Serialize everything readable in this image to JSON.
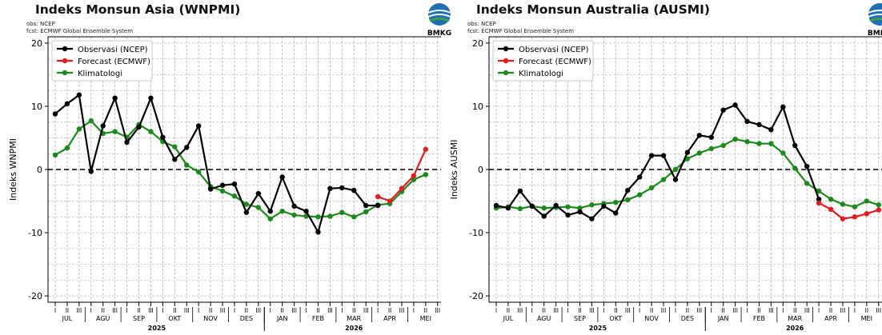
{
  "chart_data": [
    {
      "type": "line",
      "title": "Indeks Monsun Asia (WNPMI)",
      "source_obs": "obs: NCEP",
      "source_fcst": "fcst: ECMWF Global Ensemble System",
      "ylabel": "Indeks WNPMI",
      "ylim": [
        -21,
        21
      ],
      "yticks": [
        20,
        10,
        0,
        -10,
        -20
      ],
      "x_dasarian_labels": [
        "I",
        "II",
        "III",
        "I",
        "II",
        "III",
        "I",
        "II",
        "III",
        "I",
        "II",
        "III",
        "I",
        "II",
        "III",
        "I",
        "II",
        "III",
        "I",
        "II",
        "III",
        "I",
        "II",
        "III",
        "I",
        "II",
        "III",
        "I",
        "II",
        "III",
        "I",
        "II",
        "III"
      ],
      "months": [
        "JUL",
        "AGU",
        "SEP",
        "OKT",
        "NOV",
        "DES",
        "JAN",
        "FEB",
        "MAR",
        "APR",
        "MEI"
      ],
      "years": [
        "2025",
        "2026"
      ],
      "zero_line": true,
      "grid": true,
      "legend_position": "top-left",
      "series": [
        {
          "name": "Observasi (NCEP)",
          "color": "#000000",
          "x_start": 0,
          "values": [
            8.8,
            10.4,
            11.8,
            -0.3,
            6.9,
            11.3,
            4.3,
            6.7,
            11.3,
            5.1,
            1.6,
            3.5,
            6.9,
            -3.1,
            -2.5,
            -2.3,
            -6.8,
            -3.8,
            -6.6,
            -1.2,
            -5.8,
            -6.6,
            -9.9,
            -3.0,
            -2.9,
            -3.3,
            -5.7,
            -5.7
          ]
        },
        {
          "name": "Forecast (ECMWF)",
          "color": "#e41a1c",
          "x_start": 27,
          "values": [
            -4.3,
            -5.0,
            -3.0,
            -1.0,
            3.2
          ]
        },
        {
          "name": "Klimatologi",
          "color": "#1a8a1a",
          "x_start": 0,
          "values": [
            2.3,
            3.4,
            6.4,
            7.7,
            5.7,
            6.0,
            5.1,
            7.1,
            6.0,
            4.4,
            3.6,
            0.7,
            -0.4,
            -2.7,
            -3.4,
            -4.2,
            -5.5,
            -6.0,
            -7.8,
            -6.6,
            -7.2,
            -7.4,
            -7.5,
            -7.4,
            -6.8,
            -7.5,
            -6.7,
            -5.6,
            -5.4,
            -3.5,
            -1.6,
            -0.8
          ]
        }
      ]
    },
    {
      "type": "line",
      "title": "Indeks Monsun Australia (AUSMI)",
      "source_obs": "obs: NCEP",
      "source_fcst": "fcst: ECMWF Global Ensemble System",
      "ylabel": "Indeks AUSMI",
      "ylim": [
        -21,
        21
      ],
      "yticks": [
        20,
        10,
        0,
        -10,
        -20
      ],
      "x_dasarian_labels": [
        "I",
        "II",
        "III",
        "I",
        "II",
        "III",
        "I",
        "II",
        "III",
        "I",
        "II",
        "III",
        "I",
        "II",
        "III",
        "I",
        "II",
        "III",
        "I",
        "II",
        "III",
        "I",
        "II",
        "III",
        "I",
        "II",
        "III",
        "I",
        "II",
        "III",
        "I",
        "II",
        "III"
      ],
      "months": [
        "JUL",
        "AGU",
        "SEP",
        "OKT",
        "NOV",
        "DES",
        "JAN",
        "FEB",
        "MAR",
        "APR",
        "MEI"
      ],
      "years": [
        "2025",
        "2026"
      ],
      "zero_line": true,
      "grid": true,
      "legend_position": "top-left",
      "series": [
        {
          "name": "Observasi (NCEP)",
          "color": "#000000",
          "x_start": 0,
          "values": [
            -5.7,
            -6.1,
            -3.4,
            -5.8,
            -7.4,
            -5.7,
            -7.2,
            -6.7,
            -7.8,
            -5.8,
            -6.9,
            -3.3,
            -1.2,
            2.2,
            2.2,
            -1.6,
            2.7,
            5.4,
            5.1,
            9.4,
            10.2,
            7.6,
            7.1,
            6.3,
            9.9,
            3.8,
            0.5,
            -4.7
          ]
        },
        {
          "name": "Forecast (ECMWF)",
          "color": "#e41a1c",
          "x_start": 27,
          "values": [
            -5.3,
            -6.3,
            -7.8,
            -7.5,
            -7.0,
            -6.4
          ]
        },
        {
          "name": "Klimatologi",
          "color": "#1a8a1a",
          "x_start": 0,
          "values": [
            -6.1,
            -5.9,
            -6.2,
            -5.8,
            -6.1,
            -6.0,
            -5.9,
            -6.1,
            -5.6,
            -5.4,
            -5.2,
            -4.8,
            -4.0,
            -2.9,
            -1.6,
            0.0,
            1.7,
            2.6,
            3.3,
            3.8,
            4.8,
            4.4,
            4.1,
            4.1,
            2.6,
            0.2,
            -2.2,
            -3.4,
            -4.7,
            -5.5,
            -5.9,
            -5.0,
            -5.6
          ]
        }
      ]
    }
  ]
}
